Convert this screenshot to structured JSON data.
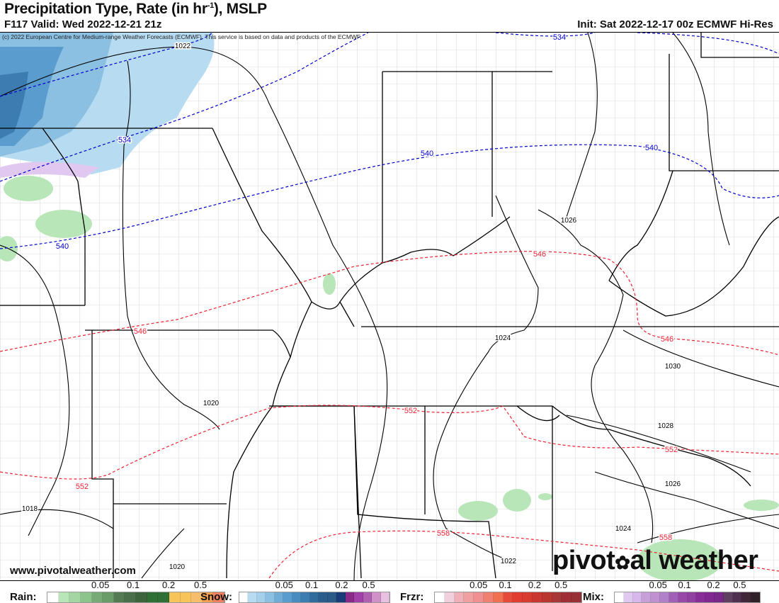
{
  "header": {
    "title": "Precipitation Type, Rate (in hr",
    "title_sup": "-1",
    "title_end": "), MSLP",
    "valid": "F117 Valid: Wed 2022-12-21 21z",
    "init": "Init: Sat 2022-12-17 00z ECMWF Hi-Res",
    "copyright": "(c) 2022 European Centre for Medium-range Weather Forecasts (ECMWF). This service is based on data and products of the ECMWF."
  },
  "footer": {
    "website": "www.pivotalweather.com",
    "logo": "pivotalweather"
  },
  "map": {
    "isobar_color": "#000000",
    "thickness_cold_color": "#0000cc",
    "thickness_warm_color": "#ee2233",
    "isobar_labels": [
      "1022",
      "1026",
      "1024",
      "1030",
      "1028",
      "1026",
      "1024",
      "1022",
      "1020",
      "1018",
      "1020"
    ],
    "thickness_labels": [
      "534",
      "534",
      "540",
      "540",
      "540",
      "546",
      "546",
      "546",
      "552",
      "552",
      "552",
      "558",
      "558"
    ]
  },
  "legend": [
    {
      "name": "Rain:",
      "ticks": [
        "0.05",
        "0.1",
        "0.2",
        "0.5"
      ],
      "colors": [
        "#ffffff",
        "#b8e6b8",
        "#a3d6a3",
        "#8cc48c",
        "#78aa78",
        "#6a9c6a",
        "#547a54",
        "#4a6e4a",
        "#3d633d",
        "#2f6e35",
        "#2f6e35",
        "#f7c45a",
        "#f7c45a",
        "#f6bd6c",
        "#f0a050",
        "#f08060"
      ]
    },
    {
      "name": "Snow:",
      "ticks": [
        "0.05",
        "0.1",
        "0.2",
        "0.5"
      ],
      "colors": [
        "#ffffff",
        "#b7dcf2",
        "#a5d0ec",
        "#8cc0e2",
        "#70acd6",
        "#5a9cce",
        "#4a8cc0",
        "#3c7cb0",
        "#2f6c9c",
        "#2a5c8c",
        "#2c5a86",
        "#183c78",
        "#8a2a88",
        "#a040a8",
        "#b060b0",
        "#d090c8",
        "#e8c0e0"
      ]
    },
    {
      "name": "Frzr:",
      "ticks": [
        "0.05",
        "0.1",
        "0.2",
        "0.5"
      ],
      "colors": [
        "#ffffff",
        "#f0d0dc",
        "#f0b0b8",
        "#f0a0a0",
        "#f09090",
        "#f08070",
        "#f07050",
        "#e84a3a",
        "#e03c30",
        "#d83c30",
        "#c83830",
        "#b83830",
        "#a83838",
        "#a03038",
        "#983038"
      ]
    },
    {
      "name": "Mix:",
      "ticks": [
        "0.05",
        "0.1",
        "0.2",
        "0.5"
      ],
      "colors": [
        "#ffffff",
        "#e0c8f0",
        "#d8b8ec",
        "#c8a0d8",
        "#c090d0",
        "#b080c8",
        "#a060b8",
        "#9848a8",
        "#9040a0",
        "#882c98",
        "#802890",
        "#782888",
        "#604060",
        "#503050",
        "#402838",
        "#302028"
      ]
    }
  ]
}
